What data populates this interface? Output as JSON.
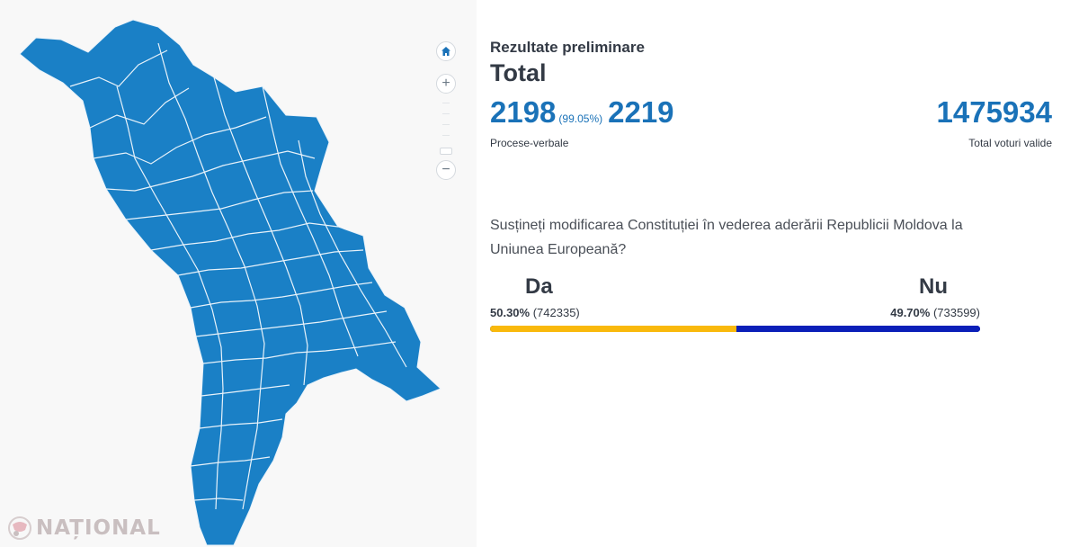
{
  "map": {
    "region": "Republic of Moldova",
    "fill_color": "#1a80c6",
    "border_color": "#e8f2fa",
    "controls": {
      "home_icon": "home-icon",
      "zoom_in_label": "+",
      "zoom_out_label": "−"
    }
  },
  "logo": {
    "text": "NAȚIONAL"
  },
  "results": {
    "subtitle": "Rezultate preliminare",
    "title": "Total",
    "processed": "2198",
    "processed_pct": "(99.05%)",
    "total_protocols": "2219",
    "protocols_label": "Procese-verbale",
    "valid_votes": "1475934",
    "valid_votes_label": "Total voturi valide",
    "question": "Susțineți modificarea Constituției în vederea aderării Republicii Moldova la Uniunea Europeană?",
    "yes": {
      "label": "Da",
      "pct": "50.30%",
      "count": "(742335)",
      "share": 50.3,
      "color": "#f9b90c"
    },
    "no": {
      "label": "Nu",
      "pct": "49.70%",
      "count": "(733599)",
      "share": 49.7,
      "color": "#0b1fb8"
    }
  }
}
